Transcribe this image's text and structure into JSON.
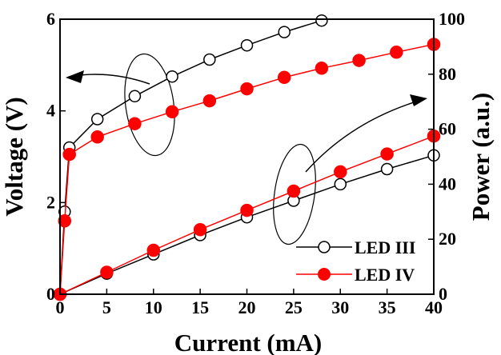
{
  "chart_data": {
    "type": "line",
    "title": "",
    "xlabel": "Current (mA)",
    "ylabel_left": "Voltage (V)",
    "ylabel_right": "Power (a.u.)",
    "x_ticks": [
      "0",
      "5",
      "10",
      "15",
      "20",
      "25",
      "30",
      "35",
      "40"
    ],
    "y_left_ticks": [
      "0",
      "2",
      "4",
      "6"
    ],
    "y_right_ticks": [
      "0",
      "20",
      "40",
      "60",
      "80",
      "100"
    ],
    "xlim": [
      0,
      40
    ],
    "ylim_left": [
      0,
      6
    ],
    "ylim_right": [
      0,
      100
    ],
    "grid": false,
    "legend_position": "bottom-right",
    "series": [
      {
        "name": "LED III",
        "axis": "left",
        "quantity": "voltage",
        "marker": "open-circle",
        "color": "#000000",
        "x": [
          0,
          0.5,
          1,
          4,
          8,
          12,
          16,
          20,
          24,
          28
        ],
        "y": [
          0,
          1.8,
          3.2,
          3.82,
          4.32,
          4.75,
          5.12,
          5.43,
          5.72,
          5.97
        ]
      },
      {
        "name": "LED IV",
        "axis": "left",
        "quantity": "voltage",
        "marker": "filled-circle",
        "color": "#ff0000",
        "x": [
          0,
          0.5,
          1,
          4,
          8,
          12,
          16,
          20,
          24,
          28,
          32,
          36,
          40
        ],
        "y": [
          0,
          1.6,
          3.05,
          3.43,
          3.72,
          3.98,
          4.22,
          4.48,
          4.73,
          4.93,
          5.1,
          5.28,
          5.45
        ]
      },
      {
        "name": "LED III",
        "axis": "right",
        "quantity": "power",
        "marker": "open-circle",
        "color": "#000000",
        "x": [
          0,
          5,
          10,
          15,
          20,
          25,
          30,
          35,
          40
        ],
        "y": [
          0,
          7.5,
          14.5,
          21.5,
          28,
          34,
          40,
          45.5,
          50.5
        ]
      },
      {
        "name": "LED IV",
        "axis": "right",
        "quantity": "power",
        "marker": "filled-circle",
        "color": "#ff0000",
        "x": [
          0,
          5,
          10,
          15,
          20,
          25,
          30,
          35,
          40
        ],
        "y": [
          0,
          8,
          16,
          23.5,
          30.5,
          37.5,
          44.5,
          51,
          57.5
        ]
      }
    ]
  }
}
